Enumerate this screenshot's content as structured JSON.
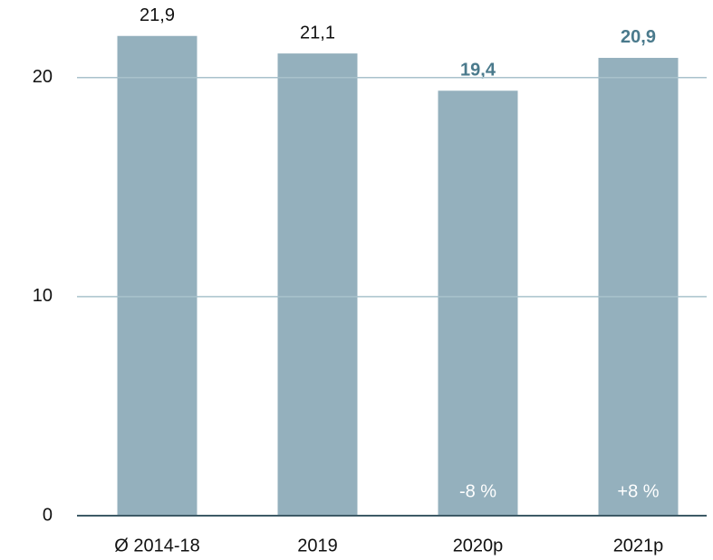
{
  "chart_data": {
    "type": "bar",
    "categories": [
      "Ø 2014-18",
      "2019",
      "2020p",
      "2021p"
    ],
    "values": [
      21.9,
      21.1,
      19.4,
      20.9
    ],
    "value_labels": [
      "21,9",
      "21,1",
      "19,4",
      "20,9"
    ],
    "value_label_colors": [
      "#111111",
      "#111111",
      "#4a7a8c",
      "#4a7a8c"
    ],
    "color": "#94b0bd",
    "ylim": [
      0,
      23.5
    ],
    "yticks": [
      0,
      10,
      20
    ],
    "grid": true,
    "annotations": [
      {
        "text": "-8 %",
        "category": "2020p"
      },
      {
        "text": "+8 %",
        "category": "2021p"
      }
    ]
  }
}
